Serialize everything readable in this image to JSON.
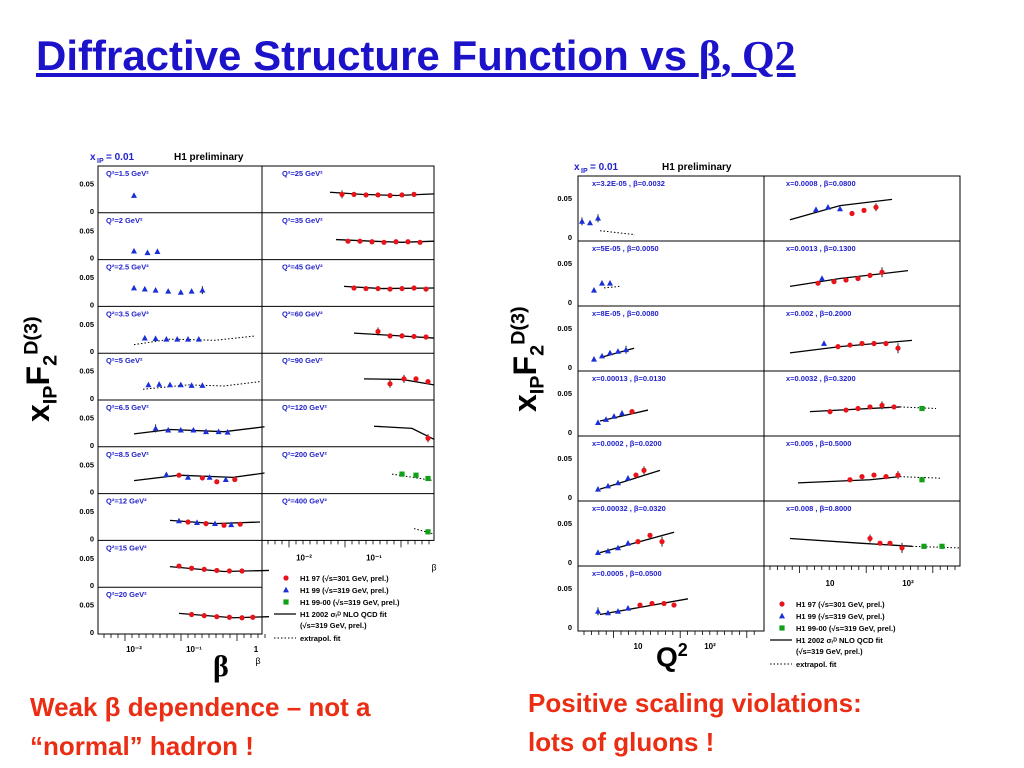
{
  "title": {
    "text": "Diffractive Structure Function vs ",
    "beta": "β",
    "tail": ", Q2"
  },
  "captions": {
    "left_line1": "Weak β dependence – not a",
    "left_line2": "“normal” hadron !",
    "right_line1": "Positive scaling violations:",
    "right_line2": "lots of gluons !"
  },
  "ylabel": {
    "x": "x",
    "ip": "IP",
    "F": "F",
    "two": "2",
    "d3": "D(3)"
  },
  "left_xlabel": "β",
  "right_xlabel": {
    "Q": "Q",
    "sup": "2"
  },
  "left_plot": {
    "header_xip": "x",
    "header_xip_sub": "IP",
    "header_xip_val": " = 0.01",
    "header_prelim": "H1 preliminary",
    "y_ticks": [
      "0.05",
      "0"
    ],
    "x_ticks": [
      "10⁻²",
      "10⁻¹",
      "1"
    ],
    "x_axis_symbol": "β",
    "left_panels": [
      "Q²=1.5 GeV²",
      "Q²=2 GeV²",
      "Q²=2.5 GeV²",
      "Q²=3.5 GeV²",
      "Q²=5 GeV²",
      "Q²=6.5 GeV²",
      "Q²=8.5 GeV²",
      "Q²=12 GeV²",
      "Q²=15 GeV²",
      "Q²=20 GeV²"
    ],
    "right_panels": [
      "Q²=25 GeV²",
      "Q²=35 GeV²",
      "Q²=45 GeV²",
      "Q²=60 GeV²",
      "Q²=90 GeV²",
      "Q²=120 GeV²",
      "Q²=200 GeV²",
      "Q²=400 GeV²"
    ],
    "legend": [
      "H1 97 (√s=301 GeV, prel.)",
      "H1 99 (√s=319 GeV, prel.)",
      "H1 99-00 (√s=319 GeV, prel.)",
      "H1 2002 σᵣᴰ NLO QCD fit",
      "(√s=319 GeV, prel.)",
      "extrapol. fit"
    ]
  },
  "right_plot": {
    "header_xip": "x",
    "header_xip_sub": "IP",
    "header_xip_val": " = 0.01",
    "header_prelim": "H1 preliminary",
    "y_ticks": [
      "0.05",
      "0"
    ],
    "x_ticks": [
      "10",
      "10²"
    ],
    "left_panels": [
      "x=3.2E-05 , β=0.0032",
      "x=5E-05 , β=0.0050",
      "x=8E-05 , β=0.0080",
      "x=0.00013 , β=0.0130",
      "x=0.0002 , β=0.0200",
      "x=0.00032 , β=0.0320",
      "x=0.0005 , β=0.0500"
    ],
    "right_panels": [
      "x=0.0008 , β=0.0800",
      "x=0.0013 , β=0.1300",
      "x=0.002 , β=0.2000",
      "x=0.0032 , β=0.3200",
      "x=0.005 , β=0.5000",
      "x=0.008 , β=0.8000"
    ],
    "legend": [
      "H1 97 (√s=301 GeV, prel.)",
      "H1 99 (√s=319 GeV, prel.)",
      "H1 99-00 (√s=319 GeV, prel.)",
      "H1 2002 σᵣᴰ NLO QCD fit",
      "(√s=319 GeV, prel.)",
      "extrapol. fit"
    ]
  },
  "colors": {
    "title": "#1b12c9",
    "caption": "#ea2d13",
    "panel_label": "#2222cc",
    "h1_97": "#e8141c",
    "h1_99": "#1a2fd8",
    "h1_9900": "#12a018"
  }
}
